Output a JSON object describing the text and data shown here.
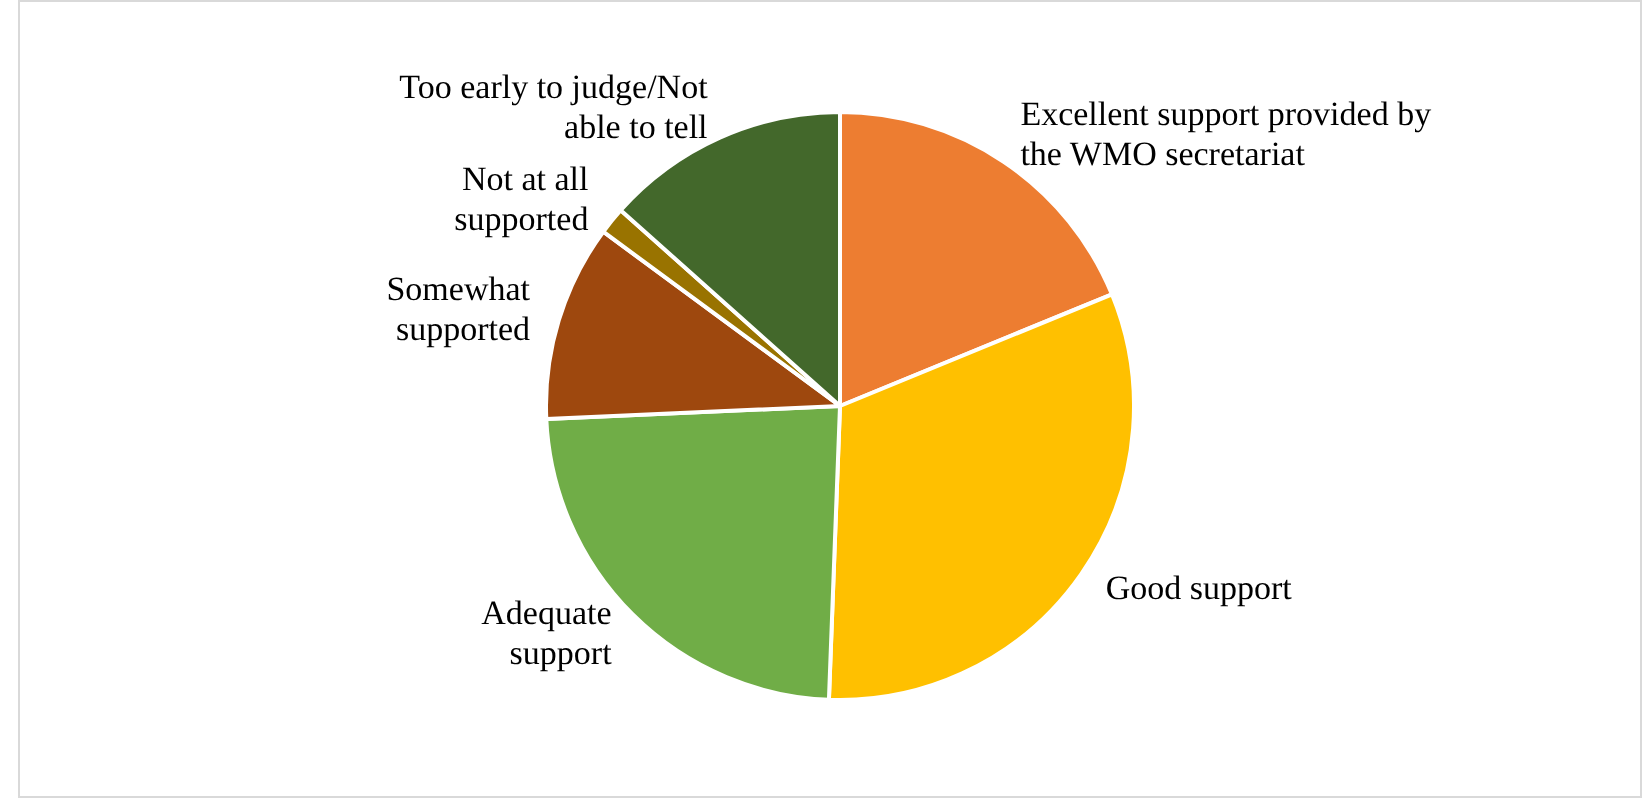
{
  "chart_data": {
    "type": "pie",
    "categories": [
      "Excellent support provided by the WMO secretariat",
      "Good support",
      "Adequate support",
      "Somewhat supported",
      "Not at all supported",
      "Too early to judge/Not able to tell"
    ],
    "values": [
      18.8,
      31.8,
      23.7,
      10.8,
      1.5,
      13.4
    ],
    "colors": [
      "#ed7d31",
      "#ffc000",
      "#70ad47",
      "#9e480e",
      "#997300",
      "#43682b"
    ]
  }
}
